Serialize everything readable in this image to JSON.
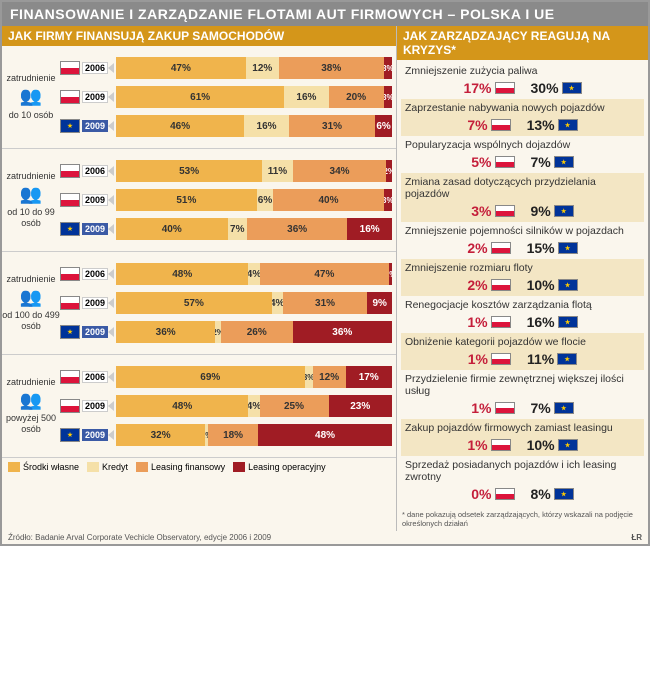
{
  "title": "FINANSOWANIE I ZARZĄDZANIE FLOTAMI AUT FIRMOWYCH – POLSKA I UE",
  "left_title": "JAK FIRMY FINANSUJĄ ZAKUP SAMOCHODÓW",
  "right_title": "JAK ZARZĄDZAJĄCY REAGUJĄ NA KRYZYS*",
  "colors": {
    "c1": "#f0b44c",
    "c2": "#f5e0a8",
    "c3": "#eb9d5a",
    "c4": "#a01c24",
    "bg": "#faf6ed",
    "title_bg": "#8a8a8a",
    "section_bg": "#d4961a"
  },
  "legend": [
    {
      "label": "Środki własne",
      "color": "#f0b44c"
    },
    {
      "label": "Kredyt",
      "color": "#f5e0a8"
    },
    {
      "label": "Leasing finansowy",
      "color": "#eb9d5a"
    },
    {
      "label": "Leasing operacyjny",
      "color": "#a01c24"
    }
  ],
  "groups": [
    {
      "label_top": "zatrudnienie",
      "label_bot": "do 10 osób",
      "rows": [
        {
          "flag": "pl",
          "year": "2006",
          "seg": [
            47,
            12,
            38,
            3
          ]
        },
        {
          "flag": "pl",
          "year": "2009",
          "seg": [
            61,
            16,
            20,
            3
          ]
        },
        {
          "flag": "eu",
          "year": "2009",
          "seg": [
            46,
            16,
            31,
            6
          ]
        }
      ]
    },
    {
      "label_top": "zatrudnienie",
      "label_bot": "od 10 do 99 osób",
      "rows": [
        {
          "flag": "pl",
          "year": "2006",
          "seg": [
            53,
            11,
            34,
            2
          ]
        },
        {
          "flag": "pl",
          "year": "2009",
          "seg": [
            51,
            6,
            40,
            3
          ]
        },
        {
          "flag": "eu",
          "year": "2009",
          "seg": [
            40,
            7,
            36,
            16
          ]
        }
      ]
    },
    {
      "label_top": "zatrudnienie",
      "label_bot": "od 100 do 499 osób",
      "rows": [
        {
          "flag": "pl",
          "year": "2006",
          "seg": [
            48,
            4,
            47,
            1
          ]
        },
        {
          "flag": "pl",
          "year": "2009",
          "seg": [
            57,
            4,
            31,
            9
          ]
        },
        {
          "flag": "eu",
          "year": "2009",
          "seg": [
            36,
            2,
            26,
            36
          ]
        }
      ]
    },
    {
      "label_top": "zatrudnienie",
      "label_bot": "powyżej 500 osób",
      "rows": [
        {
          "flag": "pl",
          "year": "2006",
          "seg": [
            69,
            3,
            12,
            17
          ]
        },
        {
          "flag": "pl",
          "year": "2009",
          "seg": [
            48,
            4,
            25,
            23
          ]
        },
        {
          "flag": "eu",
          "year": "2009",
          "seg": [
            32,
            1,
            18,
            48
          ]
        }
      ]
    }
  ],
  "crisis": [
    {
      "label": "Zmniejszenie zużycia paliwa",
      "pl": "17%",
      "eu": "30%"
    },
    {
      "label": "Zaprzestanie nabywania nowych pojazdów",
      "pl": "7%",
      "eu": "13%"
    },
    {
      "label": "Popularyzacja wspólnych dojazdów",
      "pl": "5%",
      "eu": "7%"
    },
    {
      "label": "Zmiana zasad dotyczących przydzielania pojazdów",
      "pl": "3%",
      "eu": "9%"
    },
    {
      "label": "Zmniejszenie pojemności silników w pojazdach",
      "pl": "2%",
      "eu": "15%"
    },
    {
      "label": "Zmniejszenie rozmiaru floty",
      "pl": "2%",
      "eu": "10%"
    },
    {
      "label": "Renegocjacje kosztów zarządzania flotą",
      "pl": "1%",
      "eu": "16%"
    },
    {
      "label": "Obniżenie kategorii pojazdów we flocie",
      "pl": "1%",
      "eu": "11%"
    },
    {
      "label": "Przydzielenie firmie zewnętrznej większej ilości usług",
      "pl": "1%",
      "eu": "7%"
    },
    {
      "label": "Zakup pojazdów firmowych zamiast leasingu",
      "pl": "1%",
      "eu": "10%"
    },
    {
      "label": "Sprzedaż posiadanych pojazdów i ich leasing zwrotny",
      "pl": "0%",
      "eu": "8%"
    }
  ],
  "source": "Źródło: Badanie Arval Corporate Vechicle Observatory, edycje 2006 i 2009",
  "footnote": "* dane pokazują odsetek zarządzających, którzy wskazali na podjęcie określonych działań",
  "sig": "ŁR"
}
